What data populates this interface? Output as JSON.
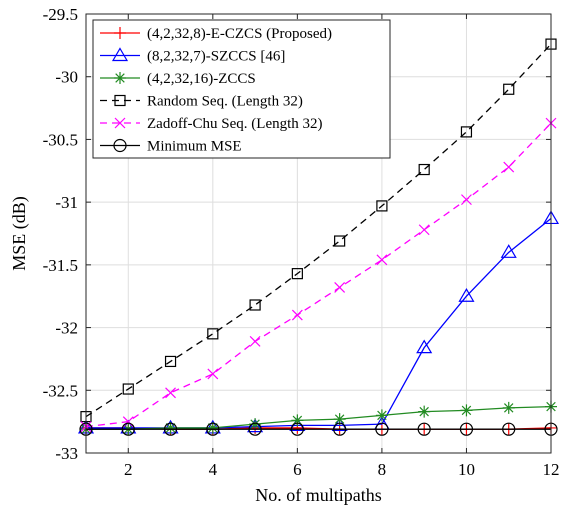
{
  "chart_data": {
    "type": "line",
    "title": "",
    "xlabel": "No. of multipaths",
    "ylabel": "MSE (dB)",
    "xlim": [
      1,
      12
    ],
    "ylim": [
      -33,
      -29.5
    ],
    "xticks": [
      2,
      4,
      6,
      8,
      10,
      12
    ],
    "yticks": [
      -29.5,
      -30,
      -30.5,
      -31,
      -31.5,
      -32,
      -32.5,
      -33
    ],
    "xtick_labels": [
      "2",
      "4",
      "6",
      "8",
      "10",
      "12"
    ],
    "ytick_labels": [
      "-29.5",
      "-30",
      "-30.5",
      "-31",
      "-31.5",
      "-32",
      "-32.5",
      "-33"
    ],
    "grid": true,
    "legend_position": "top-left",
    "x": [
      1,
      2,
      3,
      4,
      5,
      6,
      7,
      8,
      9,
      10,
      11,
      12
    ],
    "series": [
      {
        "name": "(4,2,32,8)-E-CZCS (Proposed)",
        "color": "#ff0000",
        "marker": "plus",
        "dash": "solid",
        "values": [
          -32.8,
          -32.8,
          -32.81,
          -32.81,
          -32.8,
          -32.8,
          -32.81,
          -32.81,
          -32.81,
          -32.81,
          -32.81,
          -32.8
        ]
      },
      {
        "name": "(8,2,32,7)-SZCCS [46]",
        "color": "#0000ff",
        "marker": "triangle",
        "dash": "solid",
        "values": [
          -32.8,
          -32.8,
          -32.8,
          -32.8,
          -32.79,
          -32.78,
          -32.78,
          -32.77,
          -32.16,
          -31.75,
          -31.4,
          -31.13
        ]
      },
      {
        "name": "(4,2,32,16)-ZCCS",
        "color": "#228b22",
        "marker": "asterisk",
        "dash": "solid",
        "values": [
          -32.81,
          -32.81,
          -32.8,
          -32.8,
          -32.77,
          -32.74,
          -32.73,
          -32.7,
          -32.67,
          -32.66,
          -32.64,
          -32.63
        ]
      },
      {
        "name": "Random Seq. (Length 32)",
        "color": "#000000",
        "marker": "square",
        "dash": "dashed",
        "values": [
          -32.71,
          -32.49,
          -32.27,
          -32.05,
          -31.82,
          -31.57,
          -31.31,
          -31.03,
          -30.74,
          -30.44,
          -30.1,
          -29.74
        ]
      },
      {
        "name": "Zadoff-Chu Seq. (Length 32)",
        "color": "#ff00ff",
        "marker": "x",
        "dash": "dashed",
        "values": [
          -32.79,
          -32.75,
          -32.52,
          -32.37,
          -32.11,
          -31.9,
          -31.68,
          -31.46,
          -31.22,
          -30.98,
          -30.72,
          -30.37
        ]
      },
      {
        "name": "Minimum MSE",
        "color": "#000000",
        "marker": "circle",
        "dash": "solid",
        "values": [
          -32.81,
          -32.81,
          -32.81,
          -32.81,
          -32.81,
          -32.81,
          -32.81,
          -32.81,
          -32.81,
          -32.81,
          -32.81,
          -32.81
        ]
      }
    ]
  }
}
